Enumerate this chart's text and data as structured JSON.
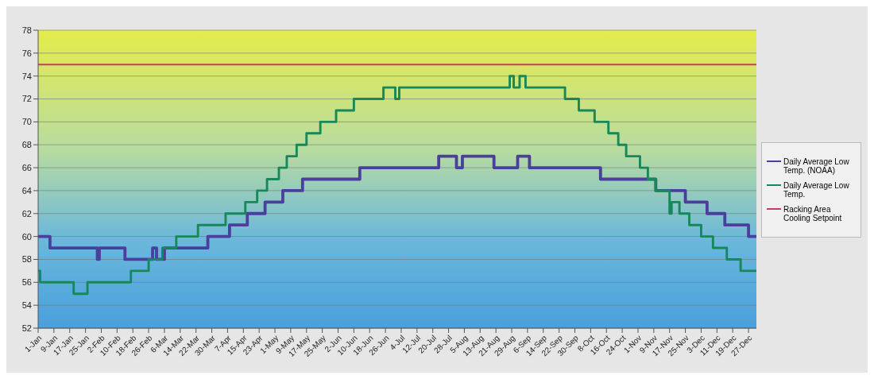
{
  "chart_data": {
    "type": "step",
    "xlim": [
      "--01-01",
      "--12-31"
    ],
    "ylim": [
      52,
      78
    ],
    "yticks": [
      52,
      54,
      56,
      58,
      60,
      62,
      64,
      66,
      68,
      70,
      72,
      74,
      76,
      78
    ],
    "xticks": [
      {
        "value": "--01-01",
        "label": "1-Jan"
      },
      {
        "value": "--01-09",
        "label": "9-Jan"
      },
      {
        "value": "--01-17",
        "label": "17-Jan"
      },
      {
        "value": "--01-25",
        "label": "25-Jan"
      },
      {
        "value": "--02-02",
        "label": "2-Feb"
      },
      {
        "value": "--02-10",
        "label": "10-Feb"
      },
      {
        "value": "--02-18",
        "label": "18-Feb"
      },
      {
        "value": "--02-26",
        "label": "26-Feb"
      },
      {
        "value": "--03-06",
        "label": "6-Mar"
      },
      {
        "value": "--03-14",
        "label": "14-Mar"
      },
      {
        "value": "--03-22",
        "label": "22-Mar"
      },
      {
        "value": "--03-30",
        "label": "30-Mar"
      },
      {
        "value": "--04-07",
        "label": "7-Apr"
      },
      {
        "value": "--04-15",
        "label": "15-Apr"
      },
      {
        "value": "--04-23",
        "label": "23-Apr"
      },
      {
        "value": "--05-01",
        "label": "1-May"
      },
      {
        "value": "--05-09",
        "label": "9-May"
      },
      {
        "value": "--05-17",
        "label": "17-May"
      },
      {
        "value": "--05-25",
        "label": "25-May"
      },
      {
        "value": "--06-02",
        "label": "2-Jun"
      },
      {
        "value": "--06-10",
        "label": "10-Jun"
      },
      {
        "value": "--06-18",
        "label": "18-Jun"
      },
      {
        "value": "--06-26",
        "label": "26-Jun"
      },
      {
        "value": "--07-04",
        "label": "4-Jul"
      },
      {
        "value": "--07-12",
        "label": "12-Jul"
      },
      {
        "value": "--07-20",
        "label": "20-Jul"
      },
      {
        "value": "--07-28",
        "label": "28-Jul"
      },
      {
        "value": "--08-05",
        "label": "5-Aug"
      },
      {
        "value": "--08-13",
        "label": "13-Aug"
      },
      {
        "value": "--08-21",
        "label": "21-Aug"
      },
      {
        "value": "--08-29",
        "label": "29-Aug"
      },
      {
        "value": "--09-06",
        "label": "6-Sep"
      },
      {
        "value": "--09-14",
        "label": "14-Sep"
      },
      {
        "value": "--09-22",
        "label": "22-Sep"
      },
      {
        "value": "--09-30",
        "label": "30-Sep"
      },
      {
        "value": "--10-08",
        "label": "8-Oct"
      },
      {
        "value": "--10-16",
        "label": "16-Oct"
      },
      {
        "value": "--10-24",
        "label": "24-Oct"
      },
      {
        "value": "--11-01",
        "label": "1-Nov"
      },
      {
        "value": "--11-09",
        "label": "9-Nov"
      },
      {
        "value": "--11-17",
        "label": "17-Nov"
      },
      {
        "value": "--11-25",
        "label": "25-Nov"
      },
      {
        "value": "--12-03",
        "label": "3-Dec"
      },
      {
        "value": "--12-11",
        "label": "11-Dec"
      },
      {
        "value": "--12-19",
        "label": "19-Dec"
      },
      {
        "value": "--12-27",
        "label": "27-Dec"
      }
    ],
    "grid": "y",
    "legend": "right",
    "marker": "none",
    "line_style": "solid",
    "series": [
      {
        "name": "Daily Average Low Temp. (NOAA)",
        "color": "#4b3f9e",
        "x": [
          "--01-01",
          "--01-07",
          "--01-31",
          "--02-01",
          "--02-14",
          "--02-28",
          "--03-02",
          "--03-06",
          "--03-28",
          "--04-08",
          "--04-17",
          "--04-26",
          "--05-05",
          "--05-15",
          "--06-13",
          "--07-23",
          "--08-01",
          "--08-04",
          "--08-20",
          "--09-01",
          "--09-07",
          "--10-13",
          "--11-10",
          "--11-25",
          "--12-06",
          "--12-15",
          "--12-27",
          "--12-31"
        ],
        "values": [
          60,
          59,
          58,
          59,
          58,
          59,
          58,
          59,
          60,
          61,
          62,
          63,
          64,
          65,
          66,
          67,
          66,
          67,
          66,
          67,
          66,
          65,
          64,
          63,
          62,
          61,
          60,
          60
        ]
      },
      {
        "name": "Daily Average Low Temp.",
        "color": "#17885a",
        "x": [
          "--01-01",
          "--01-02",
          "--01-19",
          "--01-26",
          "--02-17",
          "--02-26",
          "--03-05",
          "--03-12",
          "--03-23",
          "--04-06",
          "--04-16",
          "--04-22",
          "--04-27",
          "--05-03",
          "--05-07",
          "--05-12",
          "--05-17",
          "--05-24",
          "--06-01",
          "--06-10",
          "--06-25",
          "--07-01",
          "--07-03",
          "--08-28",
          "--08-30",
          "--09-02",
          "--09-05",
          "--09-25",
          "--10-02",
          "--10-10",
          "--10-17",
          "--10-22",
          "--10-26",
          "--11-02",
          "--11-06",
          "--11-10",
          "--11-17",
          "--11-18",
          "--11-22",
          "--11-27",
          "--12-03",
          "--12-09",
          "--12-16",
          "--12-23",
          "--12-31"
        ],
        "values": [
          57,
          56,
          55,
          56,
          57,
          58,
          59,
          60,
          61,
          62,
          63,
          64,
          65,
          66,
          67,
          68,
          69,
          70,
          71,
          72,
          73,
          72,
          73,
          74,
          73,
          74,
          73,
          72,
          71,
          70,
          69,
          68,
          67,
          66,
          65,
          64,
          62,
          63,
          62,
          61,
          60,
          59,
          58,
          57,
          57
        ]
      },
      {
        "name": "Racking Area Cooling Setpoint",
        "color": "#c2405e",
        "x": [
          "--01-01",
          "--12-31"
        ],
        "values": [
          75,
          75
        ]
      }
    ]
  }
}
